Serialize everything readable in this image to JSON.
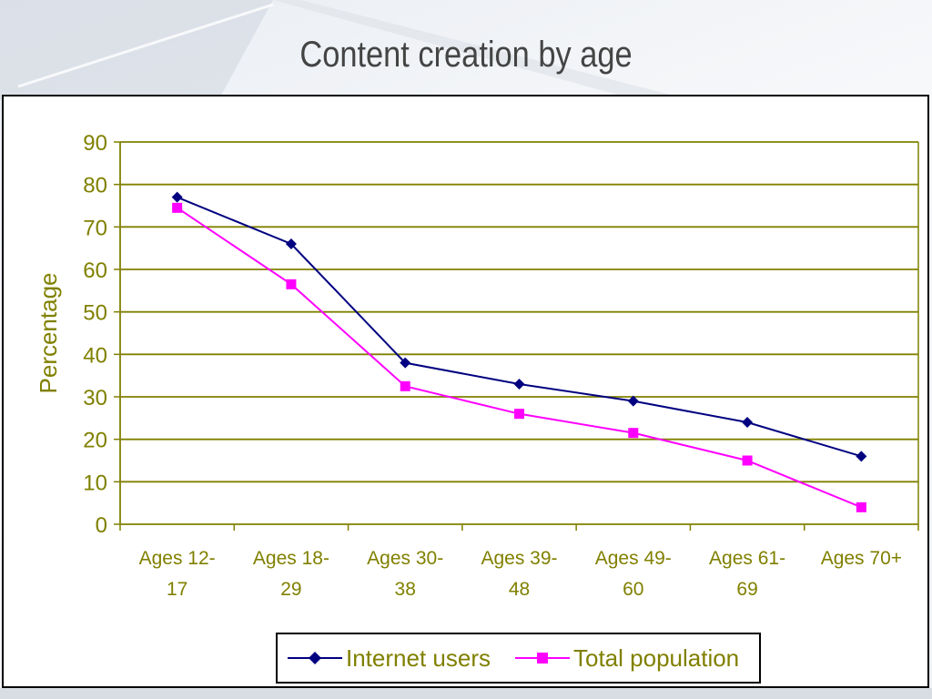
{
  "slide": {
    "title": "Content creation by age"
  },
  "chart_data": {
    "type": "line",
    "title": "",
    "xlabel": "",
    "ylabel": "Percentage",
    "ylim": [
      0,
      90
    ],
    "yticks": [
      0,
      10,
      20,
      30,
      40,
      50,
      60,
      70,
      80,
      90
    ],
    "grid": true,
    "legend_position": "bottom",
    "categories": [
      [
        "Ages 12-",
        "17"
      ],
      [
        "Ages 18-",
        "29"
      ],
      [
        "Ages 30-",
        "38"
      ],
      [
        "Ages 39-",
        "48"
      ],
      [
        "Ages 49-",
        "60"
      ],
      [
        "Ages 61-",
        "69"
      ],
      [
        "Ages 70+"
      ]
    ],
    "series": [
      {
        "name": "Internet users",
        "color": "#000080",
        "marker": "diamond",
        "values": [
          77,
          66,
          38,
          33,
          29,
          24,
          16
        ]
      },
      {
        "name": "Total population",
        "color": "#ff00ff",
        "marker": "square",
        "values": [
          74.5,
          56.5,
          32.5,
          26,
          21.5,
          15,
          4
        ]
      }
    ],
    "colors": {
      "axis": "#808000",
      "grid": "#808000",
      "text": "#808000"
    }
  }
}
